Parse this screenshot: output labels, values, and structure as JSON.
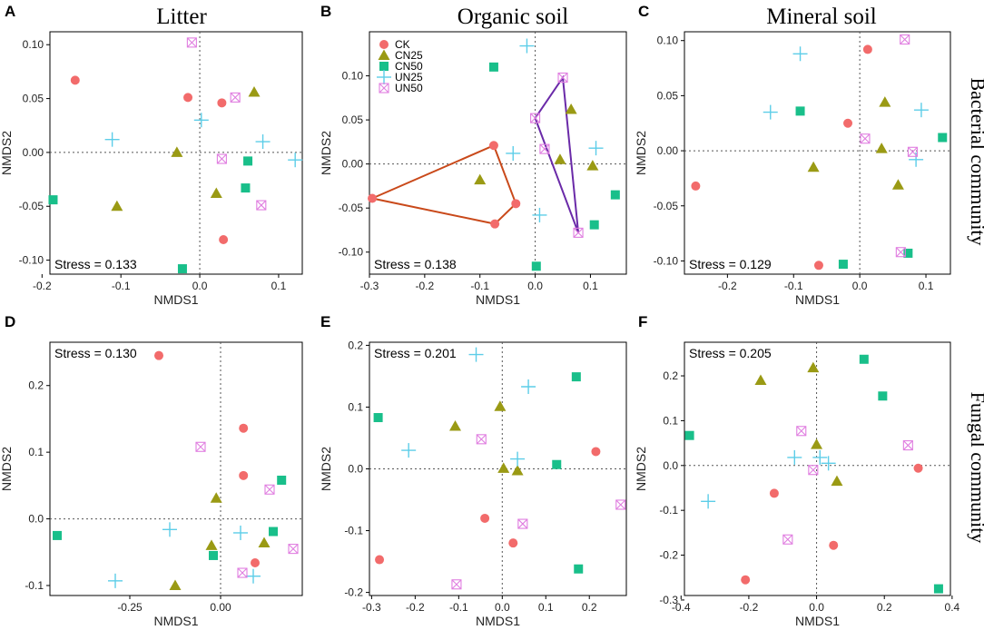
{
  "colors": {
    "CK": "#f26b6b",
    "CN25": "#9a9a14",
    "CN50": "#19bf8a",
    "UN25": "#5ccde8",
    "UN50": "#e07ee0",
    "hull_CK": "#c9491a",
    "hull_UN50": "#6a2aa8"
  },
  "legend": [
    {
      "key": "CK",
      "label": "CK",
      "shape": "circle"
    },
    {
      "key": "CN25",
      "label": "CN25",
      "shape": "triangle"
    },
    {
      "key": "CN50",
      "label": "CN50",
      "shape": "square"
    },
    {
      "key": "UN25",
      "label": "UN25",
      "shape": "plus"
    },
    {
      "key": "UN50",
      "label": "UN50",
      "shape": "crossed-square"
    }
  ],
  "column_titles": [
    "Litter",
    "Organic soil",
    "Mineral soil"
  ],
  "row_titles": [
    "Bacterial community",
    "Fungal community"
  ],
  "chart_data": [
    {
      "panel": "A",
      "type": "scatter",
      "title": "Litter",
      "xlabel": "NMDS1",
      "ylabel": "NMDS2",
      "xlim": [
        -0.19,
        0.13
      ],
      "ylim": [
        -0.113,
        0.112
      ],
      "xticks": [
        -0.2,
        -0.1,
        0.0,
        0.1
      ],
      "xtick_labels": [
        "-0.2",
        "-0.1",
        "0.0",
        "0.1"
      ],
      "yticks": [
        -0.1,
        -0.05,
        0.0,
        0.05,
        0.1
      ],
      "ytick_labels": [
        "-0.10",
        "-0.05",
        "0.00",
        "0.05",
        "0.10"
      ],
      "stress_label": "Stress = 0.133",
      "series": [
        {
          "name": "CK",
          "x": [
            -0.158,
            -0.015,
            0.028,
            0.03
          ],
          "y": [
            0.067,
            0.051,
            0.046,
            -0.081
          ]
        },
        {
          "name": "CN25",
          "x": [
            -0.105,
            -0.029,
            0.021,
            0.069
          ],
          "y": [
            -0.05,
            0.0,
            -0.038,
            0.056
          ]
        },
        {
          "name": "CN50",
          "x": [
            -0.186,
            -0.022,
            0.058,
            0.061
          ],
          "y": [
            -0.044,
            -0.108,
            -0.033,
            -0.008
          ]
        },
        {
          "name": "UN25",
          "x": [
            -0.111,
            0.002,
            0.08,
            0.121
          ],
          "y": [
            0.012,
            0.03,
            0.01,
            -0.007
          ]
        },
        {
          "name": "UN50",
          "x": [
            -0.01,
            0.045,
            0.028,
            0.078
          ],
          "y": [
            0.102,
            0.051,
            -0.006,
            -0.049
          ]
        }
      ]
    },
    {
      "panel": "B",
      "type": "scatter",
      "title": "Organic soil",
      "xlabel": "NMDS1",
      "ylabel": "NMDS2",
      "xlim": [
        -0.3,
        0.165
      ],
      "ylim": [
        -0.125,
        0.15
      ],
      "xticks": [
        -0.3,
        -0.2,
        -0.1,
        0.0,
        0.1
      ],
      "xtick_labels": [
        "-0.3",
        "-0.2",
        "-0.1",
        "0.0",
        "0.1"
      ],
      "yticks": [
        -0.1,
        -0.05,
        0.0,
        0.05,
        0.1
      ],
      "ytick_labels": [
        "-0.10",
        "-0.05",
        "0.00",
        "0.05",
        "0.10"
      ],
      "stress_label": "Stress = 0.138",
      "legend_position": "top-left",
      "series": [
        {
          "name": "CK",
          "x": [
            -0.295,
            -0.075,
            -0.035,
            -0.073
          ],
          "y": [
            -0.039,
            0.021,
            -0.045,
            -0.068
          ]
        },
        {
          "name": "CN25",
          "x": [
            -0.1,
            0.045,
            0.065,
            0.104
          ],
          "y": [
            -0.018,
            0.005,
            0.062,
            -0.002
          ]
        },
        {
          "name": "CN50",
          "x": [
            -0.075,
            0.002,
            0.107,
            0.145
          ],
          "y": [
            0.11,
            -0.116,
            -0.069,
            -0.035
          ]
        },
        {
          "name": "UN25",
          "x": [
            -0.015,
            0.008,
            -0.04,
            0.11
          ],
          "y": [
            0.134,
            -0.058,
            0.012,
            0.018
          ]
        },
        {
          "name": "UN50",
          "x": [
            0.05,
            0.0,
            0.017,
            0.078
          ],
          "y": [
            0.098,
            0.052,
            0.017,
            -0.078
          ]
        }
      ],
      "hulls": [
        {
          "group": "CK",
          "x": [
            -0.295,
            -0.075,
            -0.035,
            -0.073
          ],
          "y": [
            -0.039,
            0.021,
            -0.045,
            -0.068
          ]
        },
        {
          "group": "UN50",
          "x": [
            0.05,
            0.0,
            0.078
          ],
          "y": [
            0.098,
            0.052,
            -0.078
          ]
        }
      ]
    },
    {
      "panel": "C",
      "type": "scatter",
      "title": "Mineral soil",
      "xlabel": "NMDS1",
      "ylabel": "NMDS2",
      "xlim": [
        -0.265,
        0.137
      ],
      "ylim": [
        -0.112,
        0.108
      ],
      "xticks": [
        -0.2,
        -0.1,
        0.0,
        0.1
      ],
      "xtick_labels": [
        "-0.2",
        "-0.1",
        "0.0",
        "0.1"
      ],
      "yticks": [
        -0.1,
        -0.05,
        0.0,
        0.05,
        0.1
      ],
      "ytick_labels": [
        "-0.10",
        "-0.05",
        "0.00",
        "0.05",
        "0.10"
      ],
      "stress_label": "Stress = 0.129",
      "series": [
        {
          "name": "CK",
          "x": [
            -0.248,
            -0.062,
            -0.018,
            0.012
          ],
          "y": [
            -0.032,
            -0.104,
            0.025,
            0.092
          ]
        },
        {
          "name": "CN25",
          "x": [
            -0.07,
            0.033,
            0.038,
            0.058
          ],
          "y": [
            -0.015,
            0.002,
            0.044,
            -0.031
          ]
        },
        {
          "name": "CN50",
          "x": [
            -0.09,
            -0.025,
            0.073,
            0.125
          ],
          "y": [
            0.036,
            -0.103,
            -0.093,
            0.012
          ]
        },
        {
          "name": "UN25",
          "x": [
            -0.135,
            -0.09,
            0.093,
            0.085
          ],
          "y": [
            0.035,
            0.088,
            0.037,
            -0.008
          ]
        },
        {
          "name": "UN50",
          "x": [
            0.068,
            0.008,
            0.08,
            0.062
          ],
          "y": [
            0.101,
            0.011,
            -0.001,
            -0.092
          ]
        }
      ]
    },
    {
      "panel": "D",
      "type": "scatter",
      "title": "",
      "xlabel": "NMDS1",
      "ylabel": "NMDS2",
      "xlim": [
        -0.47,
        0.225
      ],
      "ylim": [
        -0.115,
        0.265
      ],
      "xticks": [
        -0.25,
        0.0
      ],
      "xtick_labels": [
        "-0.25",
        "0.00"
      ],
      "yticks": [
        -0.1,
        0.0,
        0.1,
        0.2
      ],
      "ytick_labels": [
        "-0.1",
        "0.0",
        "0.1",
        "0.2"
      ],
      "stress_label": "Stress = 0.130",
      "series": [
        {
          "name": "CK",
          "x": [
            -0.17,
            0.063,
            0.063,
            0.095
          ],
          "y": [
            0.245,
            0.136,
            0.065,
            -0.066
          ]
        },
        {
          "name": "CN25",
          "x": [
            -0.125,
            -0.025,
            -0.012,
            0.12
          ],
          "y": [
            -0.1,
            -0.04,
            0.031,
            -0.036
          ]
        },
        {
          "name": "CN50",
          "x": [
            -0.45,
            -0.02,
            0.145,
            0.168
          ],
          "y": [
            -0.025,
            -0.055,
            -0.019,
            0.058
          ]
        },
        {
          "name": "UN25",
          "x": [
            -0.29,
            -0.14,
            0.055,
            0.09
          ],
          "y": [
            -0.093,
            -0.016,
            -0.021,
            -0.086
          ]
        },
        {
          "name": "UN50",
          "x": [
            -0.055,
            0.135,
            0.06,
            0.2
          ],
          "y": [
            0.108,
            0.044,
            -0.081,
            -0.045
          ]
        }
      ]
    },
    {
      "panel": "E",
      "type": "scatter",
      "title": "",
      "xlabel": "NMDS1",
      "ylabel": "NMDS2",
      "xlim": [
        -0.305,
        0.285
      ],
      "ylim": [
        -0.205,
        0.205
      ],
      "xticks": [
        -0.3,
        -0.2,
        -0.1,
        0.0,
        0.1,
        0.2
      ],
      "xtick_labels": [
        "-0.3",
        "-0.2",
        "-0.1",
        "0.0",
        "0.1",
        "0.2"
      ],
      "yticks": [
        -0.2,
        -0.1,
        0.0,
        0.1,
        0.2
      ],
      "ytick_labels": [
        "-0.2",
        "-0.1",
        "0.0",
        "0.1",
        "0.2"
      ],
      "stress_label": "Stress = 0.201",
      "series": [
        {
          "name": "CK",
          "x": [
            -0.282,
            -0.04,
            0.025,
            0.215
          ],
          "y": [
            -0.147,
            -0.08,
            -0.12,
            0.028
          ]
        },
        {
          "name": "CN25",
          "x": [
            -0.108,
            -0.005,
            0.003,
            0.035
          ],
          "y": [
            0.069,
            0.101,
            0.001,
            -0.003
          ]
        },
        {
          "name": "CN50",
          "x": [
            -0.285,
            0.125,
            0.17,
            0.175
          ],
          "y": [
            0.083,
            0.007,
            0.149,
            -0.162
          ]
        },
        {
          "name": "UN25",
          "x": [
            -0.215,
            -0.06,
            0.035,
            0.06
          ],
          "y": [
            0.03,
            0.185,
            0.016,
            0.133
          ]
        },
        {
          "name": "UN50",
          "x": [
            -0.048,
            0.047,
            -0.105,
            0.272
          ],
          "y": [
            0.048,
            -0.089,
            -0.187,
            -0.058
          ]
        }
      ]
    },
    {
      "panel": "F",
      "type": "scatter",
      "title": "",
      "xlabel": "NMDS1",
      "ylabel": "NMDS2",
      "xlim": [
        -0.39,
        0.395
      ],
      "ylim": [
        -0.29,
        0.275
      ],
      "xticks": [
        -0.4,
        -0.2,
        0.0,
        0.2,
        0.4
      ],
      "xtick_labels": [
        "-0.4",
        "-0.2",
        "0.0",
        "0.2",
        "0.4"
      ],
      "yticks": [
        -0.3,
        -0.2,
        -0.1,
        0.0,
        0.1,
        0.2
      ],
      "ytick_labels": [
        "-0.3",
        "-0.2",
        "-0.1",
        "0.0",
        "0.1",
        "0.2"
      ],
      "stress_label": "Stress = 0.205",
      "series": [
        {
          "name": "CK",
          "x": [
            -0.21,
            -0.125,
            0.05,
            0.3
          ],
          "y": [
            -0.255,
            -0.062,
            -0.178,
            -0.006
          ]
        },
        {
          "name": "CN25",
          "x": [
            -0.165,
            -0.01,
            0.0,
            0.06
          ],
          "y": [
            0.19,
            0.218,
            0.047,
            -0.035
          ]
        },
        {
          "name": "CN50",
          "x": [
            -0.375,
            0.14,
            0.195,
            0.36
          ],
          "y": [
            0.067,
            0.237,
            0.155,
            -0.275
          ]
        },
        {
          "name": "UN25",
          "x": [
            -0.32,
            -0.065,
            0.01,
            0.035
          ],
          "y": [
            -0.08,
            0.018,
            0.018,
            0.005
          ]
        },
        {
          "name": "UN50",
          "x": [
            -0.045,
            -0.085,
            -0.01,
            0.27
          ],
          "y": [
            0.077,
            -0.165,
            -0.01,
            0.045
          ]
        }
      ]
    }
  ]
}
